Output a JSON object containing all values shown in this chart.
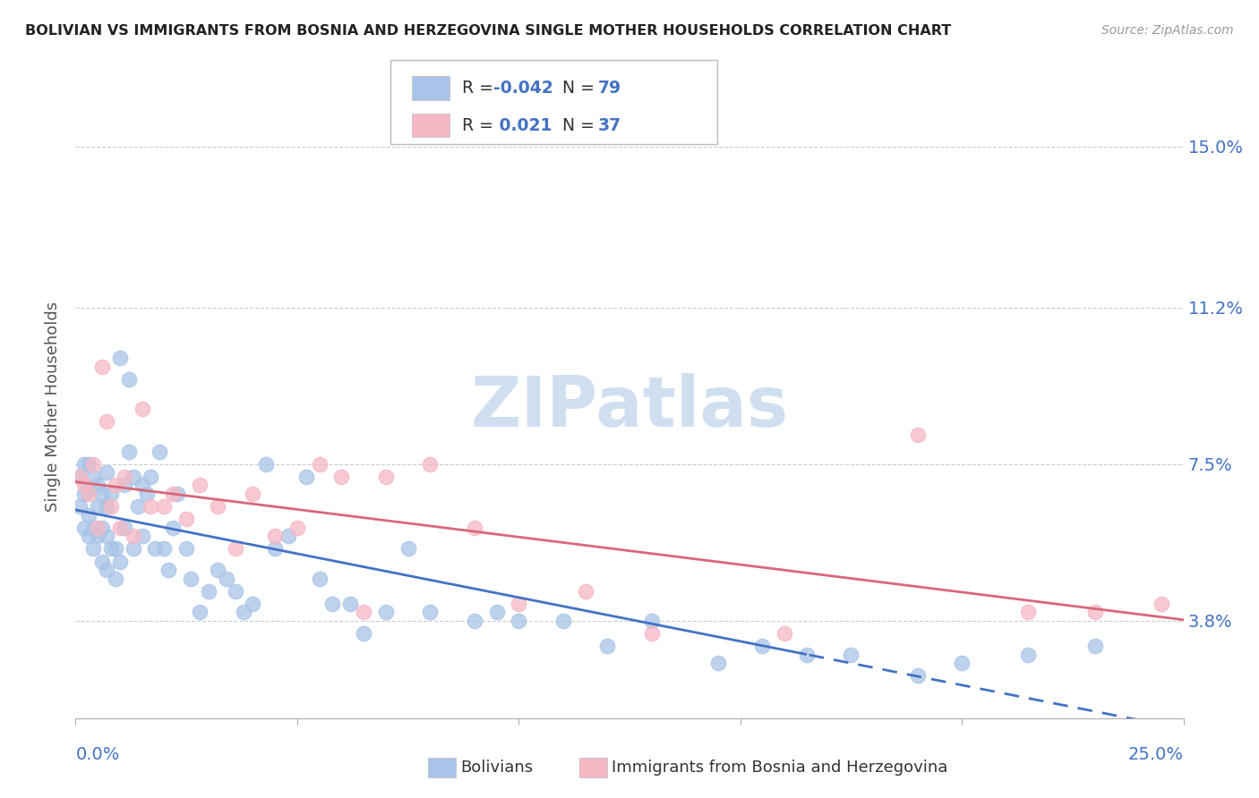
{
  "title": "BOLIVIAN VS IMMIGRANTS FROM BOSNIA AND HERZEGOVINA SINGLE MOTHER HOUSEHOLDS CORRELATION CHART",
  "source": "Source: ZipAtlas.com",
  "ylabel": "Single Mother Households",
  "ytick_vals": [
    0.038,
    0.075,
    0.112,
    0.15
  ],
  "ytick_labels": [
    "3.8%",
    "7.5%",
    "11.2%",
    "15.0%"
  ],
  "xlim": [
    0.0,
    0.25
  ],
  "ylim": [
    0.015,
    0.162
  ],
  "blue_R": -0.042,
  "blue_N": 79,
  "pink_R": 0.021,
  "pink_N": 37,
  "blue_color": "#a8c4e8",
  "pink_color": "#f5b8c4",
  "trendline_blue_color": "#4472c4",
  "trendline_pink_color": "#d9677a",
  "blue_scatter_x": [
    0.001,
    0.001,
    0.002,
    0.002,
    0.002,
    0.003,
    0.003,
    0.003,
    0.003,
    0.004,
    0.004,
    0.004,
    0.005,
    0.005,
    0.005,
    0.006,
    0.006,
    0.006,
    0.007,
    0.007,
    0.007,
    0.007,
    0.008,
    0.008,
    0.009,
    0.009,
    0.01,
    0.01,
    0.011,
    0.011,
    0.012,
    0.012,
    0.013,
    0.013,
    0.014,
    0.015,
    0.015,
    0.016,
    0.017,
    0.018,
    0.019,
    0.02,
    0.021,
    0.022,
    0.023,
    0.025,
    0.026,
    0.028,
    0.03,
    0.032,
    0.034,
    0.036,
    0.038,
    0.04,
    0.043,
    0.045,
    0.048,
    0.052,
    0.055,
    0.058,
    0.062,
    0.065,
    0.07,
    0.075,
    0.08,
    0.09,
    0.095,
    0.1,
    0.11,
    0.12,
    0.13,
    0.145,
    0.155,
    0.165,
    0.175,
    0.19,
    0.2,
    0.215,
    0.23
  ],
  "blue_scatter_y": [
    0.072,
    0.065,
    0.068,
    0.075,
    0.06,
    0.063,
    0.069,
    0.075,
    0.058,
    0.06,
    0.072,
    0.055,
    0.058,
    0.065,
    0.07,
    0.052,
    0.06,
    0.068,
    0.05,
    0.058,
    0.065,
    0.073,
    0.055,
    0.068,
    0.048,
    0.055,
    0.052,
    0.1,
    0.06,
    0.07,
    0.078,
    0.095,
    0.055,
    0.072,
    0.065,
    0.07,
    0.058,
    0.068,
    0.072,
    0.055,
    0.078,
    0.055,
    0.05,
    0.06,
    0.068,
    0.055,
    0.048,
    0.04,
    0.045,
    0.05,
    0.048,
    0.045,
    0.04,
    0.042,
    0.075,
    0.055,
    0.058,
    0.072,
    0.048,
    0.042,
    0.042,
    0.035,
    0.04,
    0.055,
    0.04,
    0.038,
    0.04,
    0.038,
    0.038,
    0.032,
    0.038,
    0.028,
    0.032,
    0.03,
    0.03,
    0.025,
    0.028,
    0.03,
    0.032
  ],
  "pink_scatter_x": [
    0.001,
    0.002,
    0.003,
    0.004,
    0.005,
    0.006,
    0.007,
    0.008,
    0.009,
    0.01,
    0.011,
    0.013,
    0.015,
    0.017,
    0.02,
    0.022,
    0.025,
    0.028,
    0.032,
    0.036,
    0.04,
    0.045,
    0.05,
    0.055,
    0.06,
    0.065,
    0.07,
    0.08,
    0.09,
    0.1,
    0.115,
    0.13,
    0.16,
    0.19,
    0.215,
    0.23,
    0.245
  ],
  "pink_scatter_y": [
    0.072,
    0.07,
    0.068,
    0.075,
    0.06,
    0.098,
    0.085,
    0.065,
    0.07,
    0.06,
    0.072,
    0.058,
    0.088,
    0.065,
    0.065,
    0.068,
    0.062,
    0.07,
    0.065,
    0.055,
    0.068,
    0.058,
    0.06,
    0.075,
    0.072,
    0.04,
    0.072,
    0.075,
    0.06,
    0.042,
    0.045,
    0.035,
    0.035,
    0.082,
    0.04,
    0.04,
    0.042
  ],
  "grid_color": "#cccccc",
  "watermark_color": "#d0dff0"
}
